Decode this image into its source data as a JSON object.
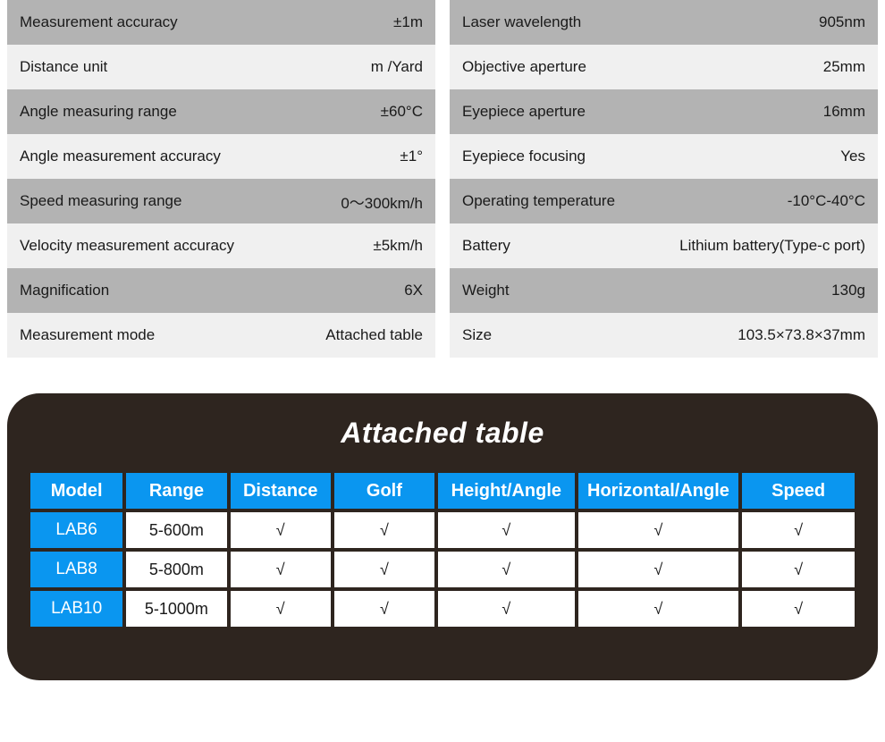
{
  "specs": {
    "left": [
      {
        "label": "Measurement accuracy",
        "value": "±1m",
        "bg": "bg-dark"
      },
      {
        "label": "Distance unit",
        "value": "m /Yard",
        "bg": "bg-light"
      },
      {
        "label": "Angle measuring range",
        "value": "±60°C",
        "bg": "bg-dark"
      },
      {
        "label": "Angle measurement accuracy",
        "value": "±1°",
        "bg": "bg-light"
      },
      {
        "label": "Speed measuring range",
        "value": "0～300km/h",
        "bg": "bg-dark"
      },
      {
        "label": "Velocity measurement accuracy",
        "value": "±5km/h",
        "bg": "bg-light"
      },
      {
        "label": "Magnification",
        "value": "6X",
        "bg": "bg-dark"
      },
      {
        "label": "Measurement mode",
        "value": "Attached table",
        "bg": "bg-light"
      }
    ],
    "right": [
      {
        "label": "Laser wavelength",
        "value": "905nm",
        "bg": "bg-dark"
      },
      {
        "label": "Objective aperture",
        "value": "25mm",
        "bg": "bg-light"
      },
      {
        "label": "Eyepiece aperture",
        "value": "16mm",
        "bg": "bg-dark"
      },
      {
        "label": "Eyepiece focusing",
        "value": "Yes",
        "bg": "bg-light"
      },
      {
        "label": "Operating temperature",
        "value": "-10°C-40°C",
        "bg": "bg-dark"
      },
      {
        "label": "Battery",
        "value": "Lithium battery(Type-c port)",
        "bg": "bg-light"
      },
      {
        "label": "Weight",
        "value": "130g",
        "bg": "bg-dark"
      },
      {
        "label": "Size",
        "value": "103.5×73.8×37mm",
        "bg": "bg-light"
      }
    ]
  },
  "attached": {
    "title": "Attached table",
    "headers": [
      "Model",
      "Range",
      "Distance",
      "Golf",
      "Height/Angle",
      "Horizontal/Angle",
      "Speed"
    ],
    "rows": [
      {
        "model": "LAB6",
        "range": "5-600m",
        "distance": "√",
        "golf": "√",
        "heightAngle": "√",
        "horizontalAngle": "√",
        "speed": "√"
      },
      {
        "model": "LAB8",
        "range": "5-800m",
        "distance": "√",
        "golf": "√",
        "heightAngle": "√",
        "horizontalAngle": "√",
        "speed": "√"
      },
      {
        "model": "LAB10",
        "range": "5-1000m",
        "distance": "√",
        "golf": "√",
        "heightAngle": "√",
        "horizontalAngle": "√",
        "speed": "√"
      }
    ],
    "colors": {
      "panel_bg": "#2e251f",
      "header_bg": "#0a96f0",
      "header_text": "#ffffff",
      "cell_bg": "#ffffff",
      "cell_text": "#1a1a1a",
      "title_color": "#ffffff"
    },
    "col_widths_pct": [
      11.5,
      12.5,
      12.5,
      12.5,
      17,
      20,
      14
    ]
  },
  "styling": {
    "spec_bg_dark": "#b3b3b3",
    "spec_bg_light": "#f0f0f0",
    "spec_text": "#1a1a1a",
    "page_bg": "#ffffff",
    "font": "Arial",
    "spec_fontsize": 17,
    "attached_title_fontsize": 32,
    "attached_header_fontsize": 20,
    "attached_cell_fontsize": 18,
    "panel_radius": 36
  }
}
